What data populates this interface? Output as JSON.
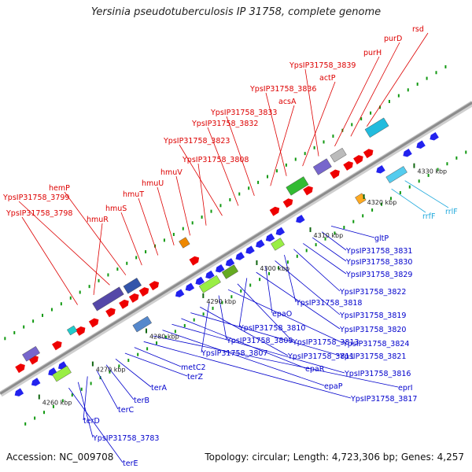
{
  "title": "Yersinia pseudotuberculosis IP 31758, complete genome",
  "footer": {
    "accession": "Accession: NC_009708",
    "stats": "Topology: circular; Length: 4,723,306 bp; Genes: 4,257"
  },
  "colors": {
    "forward_label": "#dd0000",
    "reverse_label": "#0000cc",
    "rna_label": "#22aadd",
    "backbone": "#8c8c8c",
    "forward_gene": "#ee0000",
    "reverse_gene": "#2222ee"
  },
  "ticks": [
    "4260 kbp",
    "4270 kbp",
    "4280 kbp",
    "4290 kbp",
    "4300 kbp",
    "4310 kbp",
    "4320 kbp",
    "4330 kbp"
  ],
  "upper_labels": [
    "rsd",
    "purD",
    "purH",
    "YpsIP31758_3839",
    "actP",
    "YpsIP31758_3836",
    "acsA",
    "YpsIP31758_3833",
    "YpsIP31758_3832",
    "YpsIP31758_3823",
    "YpsIP31758_3808",
    "hmuV",
    "hmuU",
    "hmuT",
    "hmuS",
    "hemP",
    "YpsIP31758_3799",
    "hmuR",
    "YpsIP31758_3798"
  ],
  "rna_labels": [
    "rrfF",
    "rrlF"
  ],
  "lower_labels": [
    "gltP",
    "YpsIP31758_3831",
    "YpsIP31758_3830",
    "YpsIP31758_3829",
    "YpsIP31758_3822",
    "YpsIP31758_3818",
    "YpsIP31758_3819",
    "epaO",
    "YpsIP31758_3820",
    "YpsIP31758_3810",
    "YpsIP31758_3813",
    "YpsIP31758_3824",
    "YpsIP31758_3809",
    "YpsIP31758_3807",
    "YpsIP31758_3811",
    "YpsIP31758_3821",
    "epaR",
    "YpsIP31758_3816",
    "epaP",
    "eprI",
    "YpsIP31758_3817",
    "metC2",
    "terZ",
    "terA",
    "terB",
    "terC",
    "terD",
    "YpsIP31758_3783",
    "terE"
  ]
}
